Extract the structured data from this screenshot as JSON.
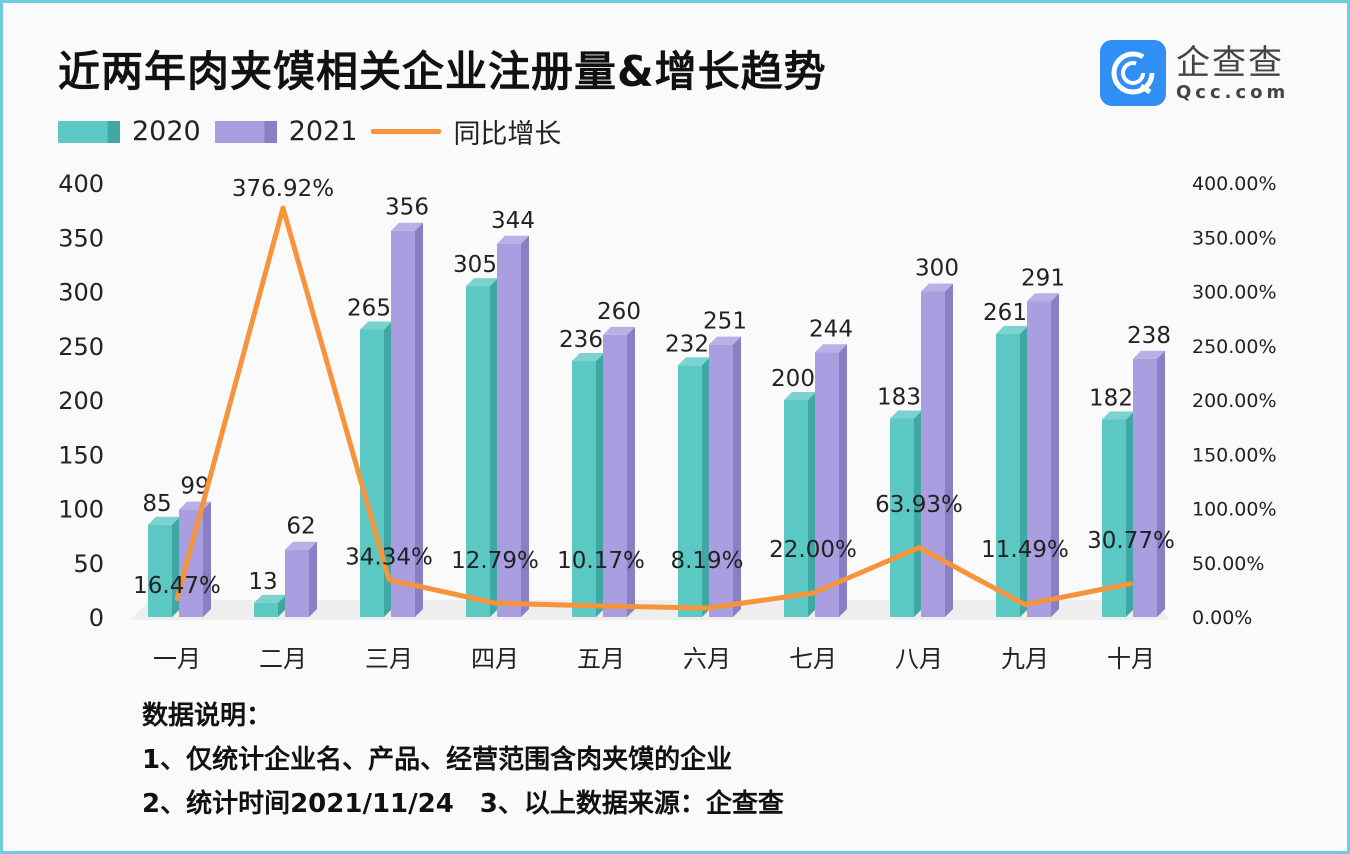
{
  "title": "近两年肉夹馍相关企业注册量&增长趋势",
  "logo": {
    "cn": "企查查",
    "en": "Qcc.com"
  },
  "colors": {
    "s2020": "#5cc8c4",
    "s2021": "#a99ee0",
    "line": "#f5943a"
  },
  "chart_data": {
    "type": "bar",
    "title": "近两年肉夹馍相关企业注册量&增长趋势",
    "categories": [
      "一月",
      "二月",
      "三月",
      "四月",
      "五月",
      "六月",
      "七月",
      "八月",
      "九月",
      "十月"
    ],
    "series": [
      {
        "name": "2020",
        "type": "bar",
        "values": [
          85,
          13,
          265,
          305,
          236,
          232,
          200,
          183,
          261,
          182
        ]
      },
      {
        "name": "2021",
        "type": "bar",
        "values": [
          99,
          62,
          356,
          344,
          260,
          251,
          244,
          300,
          291,
          238
        ]
      },
      {
        "name": "同比增长",
        "type": "line",
        "axis": "right",
        "values": [
          16.47,
          376.92,
          34.34,
          12.79,
          10.17,
          8.19,
          22.0,
          63.93,
          11.49,
          30.77
        ],
        "labels": [
          "16.47%",
          "376.92%",
          "34.34%",
          "12.79%",
          "10.17%",
          "8.19%",
          "22.00%",
          "63.93%",
          "11.49%",
          "30.77%"
        ]
      }
    ],
    "ylim": [
      0,
      400
    ],
    "yticks": [
      "0",
      "50",
      "100",
      "150",
      "200",
      "250",
      "300",
      "350",
      "400"
    ],
    "y2lim": [
      0,
      400
    ],
    "y2ticks": [
      "0.00%",
      "50.00%",
      "100.00%",
      "150.00%",
      "200.00%",
      "250.00%",
      "300.00%",
      "350.00%",
      "400.00%"
    ],
    "legend": "top-left",
    "grid": false
  },
  "notes": {
    "heading": "数据说明：",
    "line1": "1、仅统计企业名、产品、经营范围含肉夹馍的企业",
    "line2": "2、统计时间2021/11/24　3、以上数据来源：企查查"
  }
}
